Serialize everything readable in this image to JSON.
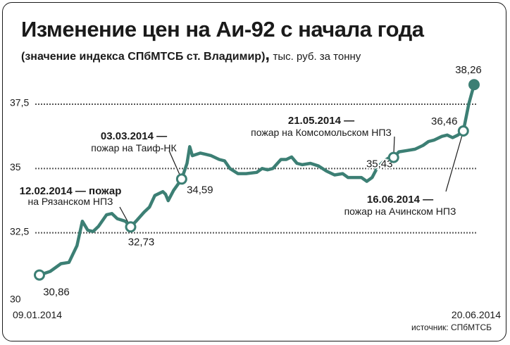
{
  "title": "Изменение цен на Аи-92 с начала года",
  "subtitle": {
    "main": "(значение индекса СПбМТСБ ст. Владимир)",
    "comma": ",",
    "unit": "тыс. руб. за тонну"
  },
  "source": "источник: СПбМТСБ",
  "colors": {
    "line": "#3c7f74",
    "grid": "#555555",
    "text": "#1a1a1a"
  },
  "chart_data": {
    "type": "line",
    "ylim": [
      30,
      38.5
    ],
    "y_ticks": [
      {
        "value": 30,
        "label": "30"
      },
      {
        "value": 32.5,
        "label": "32,5"
      },
      {
        "value": 35,
        "label": "35"
      },
      {
        "value": 37.5,
        "label": "37,5"
      }
    ],
    "x_range": [
      "2014-01-09",
      "2014-06-20"
    ],
    "x_tick_labels": [
      "09.01.2014",
      "20.06.2014"
    ],
    "grid": true,
    "series": [
      {
        "points": [
          [
            "2014-01-09",
            30.86
          ],
          [
            "2014-01-13",
            31.0
          ],
          [
            "2014-01-15",
            31.15
          ],
          [
            "2014-01-17",
            31.3
          ],
          [
            "2014-01-20",
            31.35
          ],
          [
            "2014-01-23",
            32.0
          ],
          [
            "2014-01-25",
            32.95
          ],
          [
            "2014-01-27",
            32.6
          ],
          [
            "2014-01-29",
            32.55
          ],
          [
            "2014-01-31",
            32.75
          ],
          [
            "2014-02-03",
            33.2
          ],
          [
            "2014-02-05",
            33.25
          ],
          [
            "2014-02-07",
            33.05
          ],
          [
            "2014-02-10",
            32.95
          ],
          [
            "2014-02-12",
            32.73
          ],
          [
            "2014-02-14",
            32.95
          ],
          [
            "2014-02-17",
            33.3
          ],
          [
            "2014-02-19",
            33.5
          ],
          [
            "2014-02-21",
            33.95
          ],
          [
            "2014-02-24",
            34.1
          ],
          [
            "2014-02-25",
            34.0
          ],
          [
            "2014-02-26",
            33.75
          ],
          [
            "2014-02-28",
            34.15
          ],
          [
            "2014-03-03",
            34.59
          ],
          [
            "2014-03-05",
            35.2
          ],
          [
            "2014-03-06",
            35.85
          ],
          [
            "2014-03-07",
            35.5
          ],
          [
            "2014-03-10",
            35.6
          ],
          [
            "2014-03-12",
            35.55
          ],
          [
            "2014-03-14",
            35.5
          ],
          [
            "2014-03-17",
            35.35
          ],
          [
            "2014-03-19",
            35.3
          ],
          [
            "2014-03-21",
            35.0
          ],
          [
            "2014-03-24",
            34.8
          ],
          [
            "2014-03-27",
            34.8
          ],
          [
            "2014-03-31",
            34.85
          ],
          [
            "2014-04-02",
            35.0
          ],
          [
            "2014-04-04",
            34.95
          ],
          [
            "2014-04-06",
            35.0
          ],
          [
            "2014-04-09",
            35.35
          ],
          [
            "2014-04-11",
            35.35
          ],
          [
            "2014-04-13",
            35.45
          ],
          [
            "2014-04-15",
            35.2
          ],
          [
            "2014-04-17",
            35.15
          ],
          [
            "2014-04-20",
            35.2
          ],
          [
            "2014-04-23",
            35.1
          ],
          [
            "2014-04-26",
            34.9
          ],
          [
            "2014-04-29",
            34.75
          ],
          [
            "2014-05-02",
            34.8
          ],
          [
            "2014-05-04",
            34.65
          ],
          [
            "2014-05-06",
            34.65
          ],
          [
            "2014-05-09",
            34.65
          ],
          [
            "2014-05-11",
            34.5
          ],
          [
            "2014-05-13",
            34.65
          ],
          [
            "2014-05-15",
            35.05
          ],
          [
            "2014-05-17",
            35.25
          ],
          [
            "2014-05-19",
            35.4
          ],
          [
            "2014-05-21",
            35.43
          ],
          [
            "2014-05-23",
            35.65
          ],
          [
            "2014-05-26",
            35.7
          ],
          [
            "2014-05-29",
            35.75
          ],
          [
            "2014-06-01",
            35.9
          ],
          [
            "2014-06-03",
            36.05
          ],
          [
            "2014-06-05",
            36.1
          ],
          [
            "2014-06-08",
            36.25
          ],
          [
            "2014-06-10",
            36.3
          ],
          [
            "2014-06-12",
            36.2
          ],
          [
            "2014-06-14",
            36.3
          ],
          [
            "2014-06-16",
            36.46
          ],
          [
            "2014-06-18",
            37.5
          ],
          [
            "2014-06-20",
            38.26
          ]
        ]
      }
    ],
    "markers": [
      {
        "date": "2014-01-09",
        "value": 30.86,
        "label": "30,86",
        "style": "open"
      },
      {
        "date": "2014-02-12",
        "value": 32.73,
        "label": "32,73",
        "style": "open"
      },
      {
        "date": "2014-03-03",
        "value": 34.59,
        "label": "34,59",
        "style": "open"
      },
      {
        "date": "2014-05-21",
        "value": 35.43,
        "label": "35,43",
        "style": "open"
      },
      {
        "date": "2014-06-16",
        "value": 36.46,
        "label": "36,46",
        "style": "open"
      },
      {
        "date": "2014-06-20",
        "value": 38.26,
        "label": "38,26",
        "style": "filled"
      }
    ],
    "annotations": [
      {
        "date": "2014-02-12",
        "line1": "12.02.2014 — пожар",
        "line2": "на Рязанском НПЗ"
      },
      {
        "date": "2014-03-03",
        "line1": "03.03.2014 —",
        "line2": "пожар на Таиф-НК"
      },
      {
        "date": "2014-05-21",
        "line1": "21.05.2014 —",
        "line2": "пожар на Комсомольском НПЗ"
      },
      {
        "date": "2014-06-16",
        "line1": "16.06.2014 —",
        "line2": "пожар на Ачинском НПЗ"
      }
    ]
  }
}
